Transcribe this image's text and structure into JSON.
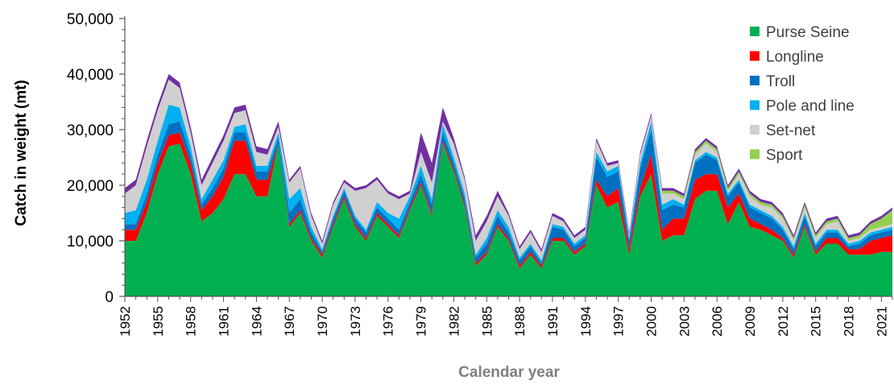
{
  "chart_data": {
    "type": "area",
    "stacked": true,
    "xlabel": "Calendar year",
    "ylabel": "Catch in weight (mt)",
    "ylim": [
      0,
      50000
    ],
    "yticks": [
      {
        "value": 0,
        "label": "0"
      },
      {
        "value": 10000,
        "label": "10,000"
      },
      {
        "value": 20000,
        "label": "20,000"
      },
      {
        "value": 30000,
        "label": "30,000"
      },
      {
        "value": 40000,
        "label": "40,000"
      },
      {
        "value": 50000,
        "label": "50,000"
      }
    ],
    "xlim": [
      1952,
      2022
    ],
    "xticks": [
      "1952",
      "1955",
      "1958",
      "1961",
      "1964",
      "1967",
      "1970",
      "1973",
      "1976",
      "1979",
      "1982",
      "1985",
      "1988",
      "1991",
      "1994",
      "1997",
      "2000",
      "2003",
      "2006",
      "2009",
      "2012",
      "2015",
      "2018",
      "2021"
    ],
    "grid": false,
    "legend_position": "top-right",
    "x": [
      1952,
      1953,
      1954,
      1955,
      1956,
      1957,
      1958,
      1959,
      1960,
      1961,
      1962,
      1963,
      1964,
      1965,
      1966,
      1967,
      1968,
      1969,
      1970,
      1971,
      1972,
      1973,
      1974,
      1975,
      1976,
      1977,
      1978,
      1979,
      1980,
      1981,
      1982,
      1983,
      1984,
      1985,
      1986,
      1987,
      1988,
      1989,
      1990,
      1991,
      1992,
      1993,
      1994,
      1995,
      1996,
      1997,
      1998,
      1999,
      2000,
      2001,
      2002,
      2003,
      2004,
      2005,
      2006,
      2007,
      2008,
      2009,
      2010,
      2011,
      2012,
      2013,
      2014,
      2015,
      2016,
      2017,
      2018,
      2019,
      2020,
      2021,
      2022
    ],
    "series": [
      {
        "name": "Purse Seine",
        "color": "#00b050",
        "values": [
          10000,
          10000,
          15000,
          22000,
          27000,
          27500,
          22000,
          13500,
          15000,
          17500,
          22000,
          22000,
          18000,
          18000,
          27500,
          12500,
          15000,
          10000,
          7000,
          12500,
          17500,
          12500,
          10000,
          14500,
          12500,
          10500,
          15500,
          20000,
          14500,
          27500,
          22500,
          16000,
          5500,
          7500,
          12500,
          10000,
          5000,
          7500,
          5000,
          10000,
          10000,
          7500,
          9000,
          20000,
          16000,
          17000,
          7500,
          18000,
          22000,
          10000,
          11000,
          11000,
          17500,
          19000,
          19000,
          13000,
          17000,
          12500,
          12000,
          11000,
          10000,
          7000,
          12500,
          7500,
          9500,
          9500,
          7500,
          7500,
          7500,
          8000,
          8000
        ]
      },
      {
        "name": "Longline",
        "color": "#ff0000",
        "values": [
          2000,
          2000,
          2000,
          2000,
          2000,
          2000,
          2000,
          2000,
          3000,
          4000,
          6000,
          6000,
          3000,
          3000,
          0,
          500,
          500,
          500,
          500,
          500,
          500,
          500,
          500,
          500,
          500,
          500,
          500,
          500,
          500,
          500,
          500,
          500,
          500,
          500,
          500,
          500,
          500,
          500,
          500,
          500,
          500,
          500,
          500,
          1000,
          2000,
          2500,
          1000,
          1500,
          3500,
          2000,
          3000,
          3000,
          3500,
          3000,
          3000,
          3000,
          1500,
          1500,
          1000,
          1000,
          500,
          500,
          500,
          500,
          1000,
          1000,
          1000,
          1000,
          2500,
          2500,
          3000
        ]
      },
      {
        "name": "Troll",
        "color": "#0070c0",
        "values": [
          1000,
          1000,
          1500,
          1500,
          2000,
          2000,
          1500,
          1000,
          1500,
          1500,
          1500,
          1500,
          1500,
          1500,
          1000,
          2000,
          2000,
          1000,
          500,
          1000,
          1000,
          1000,
          1000,
          1000,
          1000,
          1000,
          1000,
          1500,
          1500,
          1500,
          1000,
          1000,
          1000,
          1500,
          1500,
          1000,
          1000,
          1000,
          500,
          2000,
          1500,
          1000,
          1000,
          4000,
          3500,
          3000,
          1500,
          3500,
          4500,
          3500,
          2500,
          2000,
          3000,
          3500,
          2500,
          2000,
          2000,
          2000,
          2000,
          2000,
          1500,
          1000,
          1500,
          1000,
          1000,
          1000,
          500,
          1000,
          1000,
          1000,
          1000
        ]
      },
      {
        "name": "Pole and line",
        "color": "#00b0f0",
        "values": [
          2000,
          2500,
          2500,
          2500,
          3500,
          2500,
          1500,
          1000,
          1500,
          1500,
          1000,
          1500,
          1000,
          1000,
          1000,
          2500,
          2000,
          1000,
          500,
          500,
          500,
          500,
          500,
          1000,
          1000,
          2000,
          1000,
          1500,
          1000,
          1500,
          1000,
          1000,
          500,
          1000,
          1000,
          1000,
          500,
          500,
          500,
          500,
          500,
          500,
          500,
          1000,
          1000,
          1000,
          500,
          1000,
          1500,
          1000,
          1000,
          500,
          500,
          500,
          500,
          500,
          500,
          500,
          500,
          500,
          500,
          500,
          500,
          500,
          500,
          500,
          500,
          500,
          500,
          500,
          500
        ]
      },
      {
        "name": "Set-net",
        "color": "#d0d0d0",
        "values": [
          3500,
          4500,
          6000,
          5500,
          4500,
          3500,
          2500,
          2500,
          3000,
          3500,
          2500,
          2500,
          2500,
          2000,
          1000,
          3000,
          3500,
          2000,
          1000,
          2000,
          1000,
          4500,
          7500,
          4000,
          3500,
          3500,
          500,
          2500,
          3000,
          500,
          2500,
          2500,
          2500,
          3000,
          2500,
          2000,
          1500,
          2000,
          1500,
          1500,
          1000,
          1000,
          1000,
          2000,
          1000,
          500,
          500,
          1500,
          1000,
          2000,
          1000,
          1000,
          1000,
          1500,
          1000,
          500,
          1000,
          1500,
          1000,
          1500,
          1500,
          1000,
          1000,
          1000,
          1000,
          1500,
          500,
          500,
          500,
          500,
          500
        ]
      },
      {
        "name": "Sport",
        "color": "#92d050",
        "values": [
          0,
          0,
          0,
          0,
          0,
          0,
          0,
          0,
          0,
          0,
          0,
          0,
          0,
          0,
          0,
          0,
          0,
          0,
          0,
          0,
          0,
          0,
          0,
          0,
          0,
          0,
          0,
          0,
          0,
          0,
          0,
          0,
          0,
          0,
          0,
          0,
          0,
          0,
          0,
          0,
          0,
          0,
          0,
          0,
          0,
          0,
          0,
          0,
          0,
          500,
          500,
          500,
          500,
          500,
          500,
          500,
          500,
          500,
          500,
          500,
          500,
          500,
          500,
          500,
          500,
          500,
          500,
          500,
          1000,
          1500,
          2500
        ]
      },
      {
        "name": "",
        "color": "#7030a0",
        "values": [
          1000,
          1000,
          1000,
          1000,
          1000,
          1000,
          1000,
          1000,
          1000,
          1000,
          1000,
          1000,
          1000,
          1000,
          1000,
          500,
          500,
          500,
          500,
          500,
          500,
          500,
          500,
          500,
          500,
          500,
          500,
          3500,
          3500,
          2500,
          1000,
          500,
          1000,
          1000,
          1000,
          500,
          500,
          500,
          500,
          500,
          500,
          500,
          500,
          500,
          500,
          500,
          500,
          500,
          500,
          500,
          500,
          500,
          500,
          500,
          500,
          500,
          500,
          500,
          500,
          500,
          500,
          500,
          500,
          500,
          500,
          500,
          500,
          500,
          500,
          500,
          500
        ]
      }
    ]
  }
}
